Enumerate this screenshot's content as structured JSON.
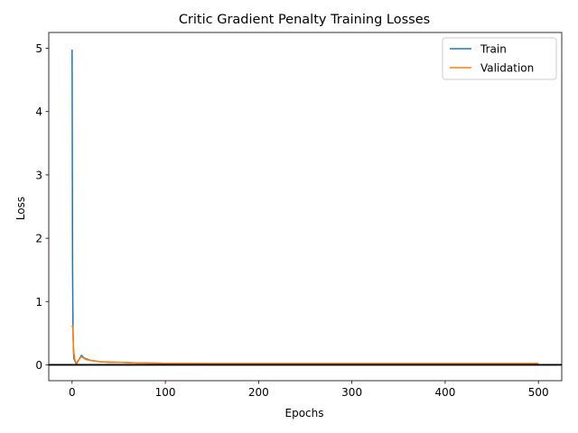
{
  "chart_data": {
    "type": "line",
    "title": "Critic Gradient Penalty Training Losses",
    "xlabel": "Epochs",
    "ylabel": "Loss",
    "xlim": [
      -25,
      525
    ],
    "ylim": [
      -0.25,
      5.25
    ],
    "xticks": [
      0,
      100,
      200,
      300,
      400,
      500
    ],
    "yticks": [
      0,
      1,
      2,
      3,
      4,
      5
    ],
    "grid": false,
    "legend_position": "top-right",
    "hline": {
      "y": 0,
      "color": "#000000"
    },
    "series": [
      {
        "name": "Train",
        "color": "#1f77b4",
        "x": [
          0,
          0.5,
          1,
          1.5,
          2,
          3,
          4,
          5,
          6,
          8,
          10,
          12,
          14,
          16,
          20,
          25,
          30,
          40,
          50,
          60,
          70,
          80,
          100,
          125,
          150,
          200,
          250,
          300,
          350,
          400,
          450,
          500
        ],
        "y": [
          4.98,
          1.6,
          0.55,
          0.22,
          0.1,
          0.06,
          0.03,
          0.02,
          0.05,
          0.1,
          0.15,
          0.12,
          0.1,
          0.09,
          0.07,
          0.06,
          0.05,
          0.04,
          0.04,
          0.035,
          0.03,
          0.03,
          0.025,
          0.022,
          0.02,
          0.02,
          0.02,
          0.02,
          0.02,
          0.02,
          0.02,
          0.02
        ]
      },
      {
        "name": "Validation",
        "color": "#ff7f0e",
        "x": [
          0,
          0.5,
          1,
          1.5,
          2,
          3,
          4,
          5,
          6,
          8,
          10,
          12,
          14,
          16,
          20,
          25,
          30,
          40,
          50,
          60,
          70,
          80,
          100,
          125,
          150,
          200,
          250,
          300,
          350,
          400,
          450,
          500
        ],
        "y": [
          0.6,
          0.62,
          0.5,
          0.3,
          0.18,
          0.08,
          0.04,
          0.03,
          0.06,
          0.1,
          0.13,
          0.11,
          0.09,
          0.08,
          0.07,
          0.06,
          0.05,
          0.045,
          0.04,
          0.035,
          0.03,
          0.03,
          0.025,
          0.022,
          0.02,
          0.02,
          0.02,
          0.02,
          0.02,
          0.02,
          0.02,
          0.02
        ]
      }
    ]
  }
}
